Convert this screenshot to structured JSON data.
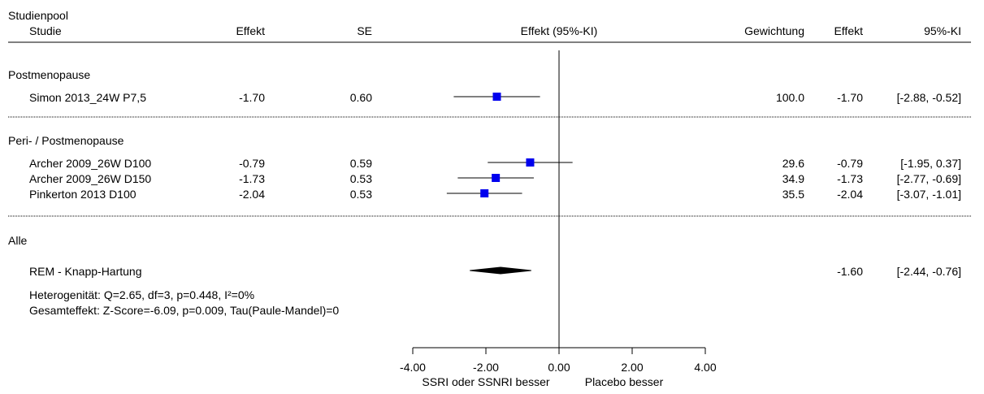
{
  "chart_data": {
    "type": "forest",
    "header": {
      "pool_label": "Studienpool",
      "study_label": "Studie",
      "effect_label": "Effekt",
      "se_label": "SE",
      "ci_plot_label": "Effekt (95%-KI)",
      "weight_label": "Gewichtung",
      "effect2_label": "Effekt",
      "ci_label": "95%-KI"
    },
    "groups": [
      {
        "name": "Postmenopause",
        "studies": [
          {
            "name": "Simon 2013_24W P7,5",
            "effect": -1.7,
            "effect_text": "-1.70",
            "se_text": "0.60",
            "lo": -2.88,
            "hi": -0.52,
            "weight_text": "100.0",
            "ci_text": "[-2.88, -0.52]"
          }
        ]
      },
      {
        "name": "Peri- / Postmenopause",
        "studies": [
          {
            "name": "Archer 2009_26W D100",
            "effect": -0.79,
            "effect_text": "-0.79",
            "se_text": "0.59",
            "lo": -1.95,
            "hi": 0.37,
            "weight_text": "29.6",
            "ci_text": "[-1.95, 0.37]"
          },
          {
            "name": "Archer 2009_26W D150",
            "effect": -1.73,
            "effect_text": "-1.73",
            "se_text": "0.53",
            "lo": -2.77,
            "hi": -0.69,
            "weight_text": "34.9",
            "ci_text": "[-2.77, -0.69]"
          },
          {
            "name": "Pinkerton 2013 D100",
            "effect": -2.04,
            "effect_text": "-2.04",
            "se_text": "0.53",
            "lo": -3.07,
            "hi": -1.01,
            "weight_text": "35.5",
            "ci_text": "[-3.07, -1.01]"
          }
        ]
      }
    ],
    "overall": {
      "section_label": "Alle",
      "method": "REM - Knapp-Hartung",
      "effect": -1.6,
      "effect_text": "-1.60",
      "lo": -2.44,
      "hi": -0.76,
      "ci_text": "[-2.44, -0.76]",
      "heterogeneity": "Heterogenität: Q=2.65, df=3, p=0.448, I²=0%",
      "total_effect": "Gesamteffekt: Z-Score=-6.09, p=0.009, Tau(Paule-Mandel)=0"
    },
    "axis": {
      "xlim": [
        -4.0,
        4.0
      ],
      "ticks": [
        -4.0,
        -2.0,
        0.0,
        2.0,
        4.0
      ],
      "tick_labels": [
        "-4.00",
        "-2.00",
        "0.00",
        "2.00",
        "4.00"
      ],
      "left_label": "SSRI oder SSNRI besser",
      "right_label": "Placebo besser"
    },
    "colors": {
      "marker": "#0000ee",
      "line": "#000000"
    }
  }
}
